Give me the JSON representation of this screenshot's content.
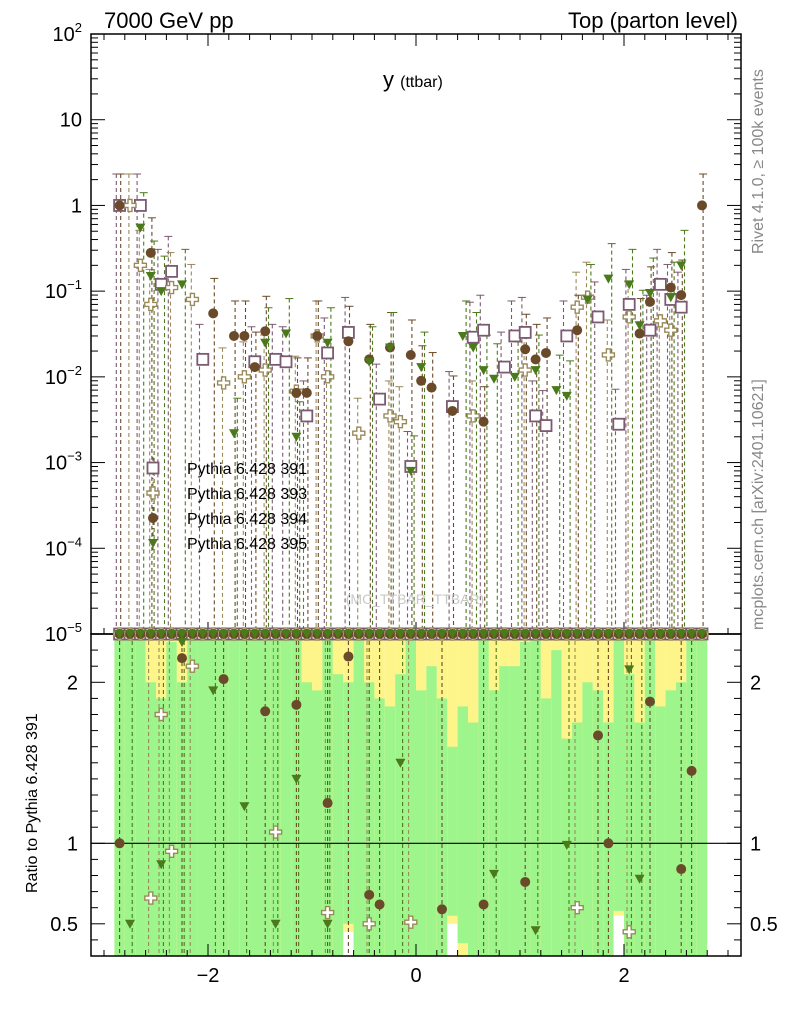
{
  "header": {
    "left_title": "7000 GeV pp",
    "right_title": "Top (parton level)"
  },
  "side_labels": {
    "rivet": "Rivet 4.1.0, ≥ 100k events",
    "mcplots": "mcplots.cern.ch [arXiv:2401.10621]"
  },
  "chart_data": {
    "type": "scatter",
    "title": "y",
    "title_sub": "(ttbar)",
    "watermark": "(MC_TTBAR_TTBAR)",
    "ylabel_ratio": "Ratio to Pythia 6.428 391",
    "xlim": [
      -3.125,
      3.125
    ],
    "ylim_main": [
      1e-05,
      100
    ],
    "ylim_ratio": [
      0.3,
      2.3
    ],
    "x_ticks": [
      -2,
      0,
      2
    ],
    "x_tick_labels": [
      "−2",
      "0",
      "2"
    ],
    "y_ticks_main": [
      100,
      10,
      1,
      0.1,
      0.01,
      0.001,
      0.0001,
      1e-05
    ],
    "y_tick_labels_main": [
      {
        "base": "10",
        "exp": "2"
      },
      {
        "base": "10",
        "exp": ""
      },
      {
        "base": "1",
        "exp": ""
      },
      {
        "base": "10",
        "exp": "−1"
      },
      {
        "base": "10",
        "exp": "−2"
      },
      {
        "base": "10",
        "exp": "−3"
      },
      {
        "base": "10",
        "exp": "−4"
      },
      {
        "base": "10",
        "exp": "−5"
      }
    ],
    "y_ticks_ratio": [
      2,
      1,
      0.5
    ],
    "y_tick_labels_ratio": [
      "2",
      "1",
      "0.5"
    ],
    "x": [
      -2.85,
      -2.75,
      -2.65,
      -2.55,
      -2.45,
      -2.35,
      -2.25,
      -2.15,
      -2.05,
      -1.95,
      -1.85,
      -1.75,
      -1.65,
      -1.55,
      -1.45,
      -1.35,
      -1.25,
      -1.15,
      -1.05,
      -0.95,
      -0.85,
      -0.75,
      -0.65,
      -0.55,
      -0.45,
      -0.35,
      -0.25,
      -0.15,
      -0.05,
      0.05,
      0.15,
      0.25,
      0.35,
      0.45,
      0.55,
      0.65,
      0.75,
      0.85,
      0.95,
      1.05,
      1.15,
      1.25,
      1.35,
      1.45,
      1.55,
      1.65,
      1.75,
      1.85,
      1.95,
      2.05,
      2.15,
      2.25,
      2.35,
      2.45,
      2.55,
      2.65,
      2.75
    ],
    "series": [
      {
        "name": "Pythia 6.428 391",
        "color": "#7b5a72",
        "marker": "open-square",
        "values": [
          1.0,
          null,
          1.0,
          null,
          0.12,
          0.17,
          null,
          null,
          0.016,
          null,
          null,
          null,
          null,
          0.015,
          null,
          0.016,
          0.015,
          null,
          0.0035,
          null,
          0.019,
          null,
          0.033,
          null,
          null,
          0.0055,
          null,
          null,
          0.0009,
          null,
          null,
          null,
          0.0045,
          null,
          0.029,
          0.035,
          null,
          0.013,
          0.03,
          0.033,
          0.0035,
          0.0027,
          null,
          0.03,
          null,
          null,
          0.05,
          null,
          0.0028,
          0.07,
          null,
          0.035,
          0.12,
          0.08,
          0.065,
          null,
          null
        ]
      },
      {
        "name": "Pythia 6.428 393",
        "color": "#9a8a5a",
        "marker": "open-cross",
        "values": [
          null,
          1.0,
          0.2,
          0.07,
          null,
          0.11,
          null,
          0.08,
          null,
          null,
          0.0085,
          null,
          0.01,
          null,
          0.012,
          null,
          null,
          0.0068,
          null,
          0.03,
          0.01,
          null,
          null,
          0.0022,
          null,
          null,
          0.0035,
          0.003,
          null,
          null,
          null,
          null,
          null,
          null,
          0.0035,
          null,
          null,
          null,
          null,
          0.012,
          null,
          null,
          null,
          null,
          0.065,
          0.085,
          null,
          0.018,
          null,
          0.05,
          null,
          null,
          0.045,
          0.035,
          null,
          null,
          null
        ]
      },
      {
        "name": "Pythia 6.428 394",
        "color": "#6b4a2a",
        "marker": "filled-circle",
        "values": [
          1.0,
          null,
          null,
          0.28,
          null,
          null,
          null,
          null,
          null,
          0.055,
          null,
          0.03,
          0.03,
          0.013,
          0.034,
          null,
          null,
          0.0065,
          0.0065,
          0.03,
          null,
          null,
          0.026,
          null,
          0.016,
          null,
          0.022,
          null,
          0.018,
          0.009,
          0.0075,
          null,
          0.004,
          null,
          null,
          0.003,
          null,
          null,
          null,
          0.021,
          0.016,
          0.019,
          null,
          null,
          0.035,
          null,
          null,
          null,
          null,
          null,
          0.032,
          0.075,
          null,
          0.11,
          0.09,
          null,
          1.0
        ]
      },
      {
        "name": "Pythia 6.428 395",
        "color": "#4a7a1a",
        "marker": "filled-triangle",
        "values": [
          null,
          null,
          0.55,
          0.15,
          0.1,
          null,
          0.12,
          null,
          null,
          null,
          null,
          0.0022,
          null,
          null,
          0.025,
          null,
          0.032,
          0.002,
          null,
          null,
          0.025,
          null,
          null,
          null,
          0.015,
          null,
          0.022,
          null,
          0.0008,
          0.013,
          null,
          null,
          null,
          0.03,
          0.022,
          0.012,
          0.0095,
          null,
          0.01,
          null,
          0.012,
          null,
          0.007,
          0.006,
          null,
          0.08,
          null,
          0.14,
          null,
          0.12,
          0.04,
          0.095,
          null,
          0.085,
          0.2,
          null,
          null
        ]
      }
    ],
    "ratio_series": [
      {
        "name": "Pythia 6.428 393",
        "color": "#9a8a5a",
        "marker": "open-cross",
        "values": [
          null,
          null,
          null,
          0.66,
          1.8,
          0.95,
          null,
          2.1,
          null,
          null,
          null,
          null,
          null,
          null,
          null,
          1.07,
          null,
          null,
          null,
          null,
          0.57,
          null,
          null,
          null,
          0.5,
          null,
          null,
          null,
          0.51,
          null,
          null,
          null,
          null,
          null,
          null,
          null,
          null,
          null,
          null,
          null,
          null,
          null,
          null,
          null,
          0.6,
          null,
          null,
          null,
          null,
          0.45,
          null,
          null,
          null,
          null,
          null,
          null,
          null
        ]
      },
      {
        "name": "Pythia 6.428 394",
        "color": "#6b4a2a",
        "marker": "filled-circle",
        "values": [
          1.0,
          null,
          null,
          null,
          null,
          null,
          2.15,
          null,
          null,
          null,
          2.02,
          null,
          null,
          null,
          1.82,
          null,
          null,
          1.86,
          null,
          null,
          1.25,
          null,
          2.16,
          null,
          0.68,
          0.62,
          null,
          null,
          null,
          null,
          null,
          0.59,
          null,
          null,
          null,
          0.62,
          null,
          null,
          null,
          0.76,
          null,
          null,
          null,
          null,
          null,
          null,
          1.67,
          1.0,
          null,
          null,
          null,
          1.88,
          null,
          null,
          0.84,
          1.45,
          null
        ]
      },
      {
        "name": "Pythia 6.428 395",
        "color": "#4a7a1a",
        "marker": "filled-triangle",
        "values": [
          null,
          0.5,
          null,
          null,
          0.87,
          null,
          2.25,
          null,
          null,
          1.95,
          null,
          null,
          1.23,
          null,
          null,
          0.5,
          null,
          1.4,
          null,
          null,
          0.5,
          null,
          null,
          null,
          null,
          null,
          null,
          1.5,
          null,
          null,
          null,
          null,
          null,
          null,
          null,
          null,
          0.81,
          null,
          null,
          null,
          0.46,
          null,
          null,
          0.99,
          null,
          null,
          null,
          null,
          null,
          2.08,
          0.78,
          null,
          null,
          null,
          null,
          null,
          null
        ]
      }
    ],
    "ratio_band_yellow_top": [
      2.3,
      2.3,
      2.3,
      2.3,
      2.3,
      2.3,
      2.3,
      2.3,
      2.3,
      2.3,
      2.3,
      2.3,
      2.3,
      2.3,
      2.3,
      2.3,
      2.3,
      2.3,
      2.3,
      2.3,
      2.3,
      2.3,
      2.3,
      2.3,
      2.3,
      2.3,
      2.3,
      2.3,
      2.3,
      2.3,
      2.3,
      2.3,
      2.3,
      2.3,
      2.3,
      2.3,
      2.3,
      2.3,
      2.3,
      2.3,
      2.3,
      2.3,
      2.3,
      2.3,
      2.3,
      2.3,
      2.3,
      2.3,
      2.3,
      2.3,
      2.3,
      2.3,
      2.3,
      2.3,
      2.3,
      2.3,
      2.3
    ],
    "ratio_band_green_top": [
      2.3,
      2.3,
      2.3,
      2.0,
      1.9,
      2.25,
      2.0,
      2.3,
      2.3,
      2.3,
      2.3,
      2.3,
      2.3,
      2.3,
      2.3,
      2.3,
      2.3,
      2.3,
      2.0,
      1.95,
      2.3,
      2.05,
      2.0,
      2.3,
      2.0,
      1.9,
      1.85,
      2.05,
      2.3,
      1.95,
      2.1,
      1.9,
      1.6,
      1.85,
      1.75,
      2.3,
      1.95,
      2.1,
      2.1,
      2.25,
      2.3,
      1.9,
      2.2,
      1.65,
      1.75,
      2.0,
      1.95,
      1.75,
      2.3,
      2.05,
      1.75,
      2.3,
      1.85,
      1.95,
      2.0,
      2.3,
      2.3
    ],
    "ratio_band_yellow_bottom": [
      0.3,
      0.3,
      0.3,
      0.3,
      0.3,
      0.3,
      0.3,
      0.3,
      0.3,
      0.3,
      0.3,
      0.3,
      0.3,
      0.3,
      0.3,
      0.3,
      0.3,
      0.3,
      0.3,
      0.3,
      0.3,
      0.3,
      0.45,
      0.3,
      0.3,
      0.3,
      0.3,
      0.3,
      0.3,
      0.3,
      0.3,
      0.3,
      0.5,
      0.3,
      0.3,
      0.3,
      0.3,
      0.3,
      0.3,
      0.3,
      0.3,
      0.3,
      0.3,
      0.3,
      0.3,
      0.3,
      0.3,
      0.3,
      0.55,
      0.3,
      0.3,
      0.3,
      0.3,
      0.3,
      0.3,
      0.3,
      0.3
    ],
    "ratio_band_green_bottom": [
      0.3,
      0.3,
      0.3,
      0.3,
      0.3,
      0.3,
      0.3,
      0.3,
      0.3,
      0.3,
      0.3,
      0.3,
      0.3,
      0.3,
      0.3,
      0.3,
      0.3,
      0.3,
      0.3,
      0.3,
      0.3,
      0.3,
      0.5,
      0.3,
      0.3,
      0.3,
      0.3,
      0.3,
      0.3,
      0.3,
      0.3,
      0.3,
      0.55,
      0.38,
      0.3,
      0.3,
      0.3,
      0.3,
      0.3,
      0.3,
      0.3,
      0.3,
      0.3,
      0.3,
      0.3,
      0.3,
      0.3,
      0.3,
      0.58,
      0.3,
      0.3,
      0.3,
      0.3,
      0.3,
      0.3,
      0.3,
      0.3
    ]
  }
}
